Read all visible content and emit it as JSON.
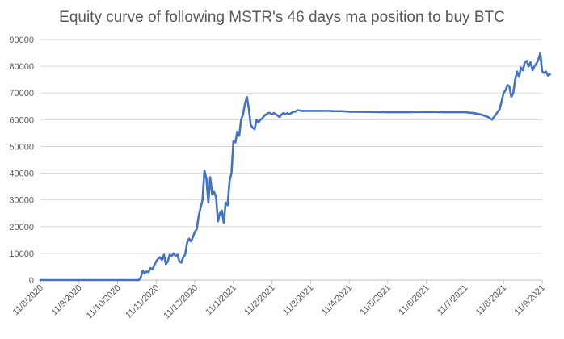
{
  "chart_data": {
    "type": "line",
    "title": "Equity curve of following MSTR's 46 days ma position to buy BTC",
    "xlabel": "",
    "ylabel": "",
    "ylim": [
      0,
      90000
    ],
    "y_ticks": [
      0,
      10000,
      20000,
      30000,
      40000,
      50000,
      60000,
      70000,
      80000,
      90000
    ],
    "y_tick_labels": [
      "0",
      "10000",
      "20000",
      "30000",
      "40000",
      "50000",
      "60000",
      "70000",
      "80000",
      "90000"
    ],
    "x_tick_labels": [
      "11/8/2020",
      "11/9/2020",
      "11/10/2020",
      "11/11/2020",
      "11/12/2020",
      "11/1/2021",
      "11/2/2021",
      "11/3/2021",
      "11/4/2021",
      "11/5/2021",
      "11/6/2021",
      "11/7/2021",
      "11/8/2021",
      "11/9/2021"
    ],
    "grid": "horizontal",
    "legend": "none",
    "line_color": "#4472c4",
    "series": [
      {
        "x": [
          0,
          2.55,
          2.6,
          2.65,
          2.7,
          2.75,
          2.8,
          2.85,
          2.9,
          2.95,
          3.0,
          3.05,
          3.1,
          3.15,
          3.2,
          3.25,
          3.3,
          3.35,
          3.4,
          3.45,
          3.5,
          3.55,
          3.6,
          3.65,
          3.7,
          3.75,
          3.8,
          3.85,
          3.9,
          3.95,
          4.0,
          4.05,
          4.1,
          4.15,
          4.2,
          4.25,
          4.3,
          4.35,
          4.4,
          4.45,
          4.5,
          4.55,
          4.6,
          4.65,
          4.7,
          4.75,
          4.8,
          4.85,
          4.9,
          4.95,
          5.0,
          5.05,
          5.1,
          5.15,
          5.2,
          5.25,
          5.3,
          5.35,
          5.4,
          5.45,
          5.5,
          5.55,
          5.6,
          5.65,
          5.7,
          5.75,
          5.8,
          5.85,
          5.9,
          5.95,
          6.0,
          6.05,
          6.1,
          6.15,
          6.2,
          6.25,
          6.3,
          6.35,
          6.4,
          6.45,
          6.5,
          6.55,
          6.6,
          6.65,
          6.7,
          6.75,
          6.8,
          6.9,
          7.0,
          7.1,
          7.2,
          7.3,
          7.4,
          7.5,
          7.6,
          7.7,
          7.8,
          7.9,
          8.0,
          8.5,
          9.0,
          9.5,
          10.0,
          10.5,
          11.0,
          11.2,
          11.4,
          11.5,
          11.6,
          11.7,
          11.8,
          11.9,
          12.0,
          12.05,
          12.1,
          12.15,
          12.2,
          12.25,
          12.3,
          12.35,
          12.4,
          12.45,
          12.5,
          12.55,
          12.6,
          12.65,
          12.7,
          12.75,
          12.8,
          12.85,
          12.9,
          12.95,
          13.0,
          13.05,
          13.1,
          13.15,
          13.2
        ],
        "values": [
          0,
          0,
          1000,
          3500,
          2500,
          3200,
          3000,
          4500,
          4000,
          5500,
          7000,
          8000,
          8500,
          7500,
          9500,
          6000,
          7000,
          9500,
          9000,
          10000,
          9000,
          9500,
          7000,
          6500,
          8500,
          9500,
          14000,
          15500,
          14500,
          16000,
          18000,
          19000,
          24000,
          27000,
          30000,
          41000,
          38000,
          29000,
          38500,
          32000,
          33000,
          31000,
          22000,
          25000,
          26000,
          21500,
          29000,
          28000,
          37000,
          40000,
          52000,
          51500,
          55500,
          54000,
          60000,
          62000,
          66000,
          68500,
          64000,
          58000,
          57000,
          56500,
          60000,
          59000,
          60000,
          60500,
          61500,
          62000,
          62500,
          62500,
          62000,
          62500,
          62000,
          61500,
          61000,
          62000,
          62500,
          62000,
          62500,
          62000,
          62500,
          63000,
          63000,
          63500,
          63500,
          63300,
          63300,
          63300,
          63300,
          63300,
          63300,
          63300,
          63300,
          63300,
          63200,
          63200,
          63200,
          63100,
          63000,
          62900,
          62800,
          62800,
          62900,
          62800,
          62800,
          62500,
          62000,
          61500,
          61000,
          60000,
          62000,
          64000,
          70000,
          71000,
          73000,
          72500,
          68500,
          70000,
          75000,
          78000,
          76000,
          79500,
          78500,
          81500,
          82000,
          80000,
          81500,
          78500,
          80000,
          81000,
          82500,
          85000,
          78000,
          77500,
          78000,
          76500,
          77000
        ]
      }
    ]
  }
}
